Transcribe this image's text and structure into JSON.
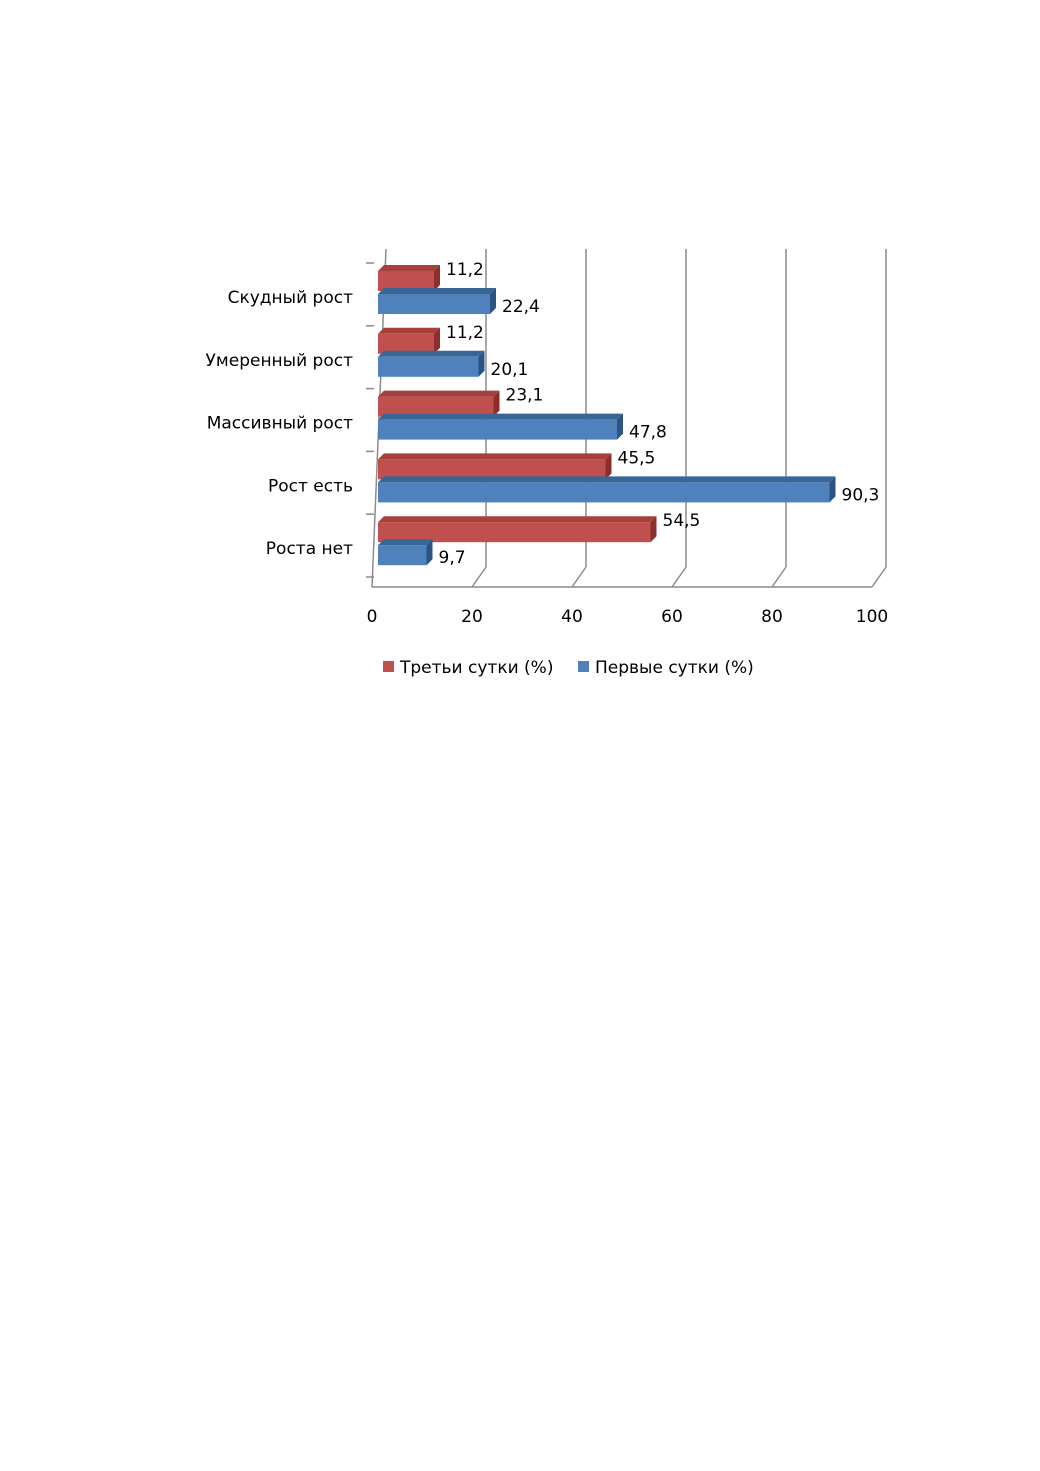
{
  "chart_data": {
    "type": "bar",
    "orientation": "horizontal",
    "style": "3d",
    "categories": [
      "Скудный рост",
      "Умеренный рост",
      "Массивный рост",
      "Рост есть",
      "Роста нет"
    ],
    "series": [
      {
        "name": "Третьи сутки (%)",
        "values": [
          11.2,
          11.2,
          23.1,
          45.5,
          54.5
        ],
        "labels": [
          "11,2",
          "11,2",
          "23,1",
          "45,5",
          "54,5"
        ],
        "color": "#c0504d",
        "top_color": "#a7403c",
        "side_color": "#8c2f2c"
      },
      {
        "name": "Первые сутки (%)",
        "values": [
          22.4,
          20.1,
          47.8,
          90.3,
          9.7
        ],
        "labels": [
          "22,4",
          "20,1",
          "47,8",
          "90,3",
          "9,7"
        ],
        "color": "#4f81bd",
        "top_color": "#3a6697",
        "side_color": "#2d5382"
      }
    ],
    "xlim": [
      0,
      100
    ],
    "xticks": [
      "0",
      "20",
      "40",
      "60",
      "80",
      "100"
    ],
    "grid": true,
    "legend_position": "bottom"
  }
}
